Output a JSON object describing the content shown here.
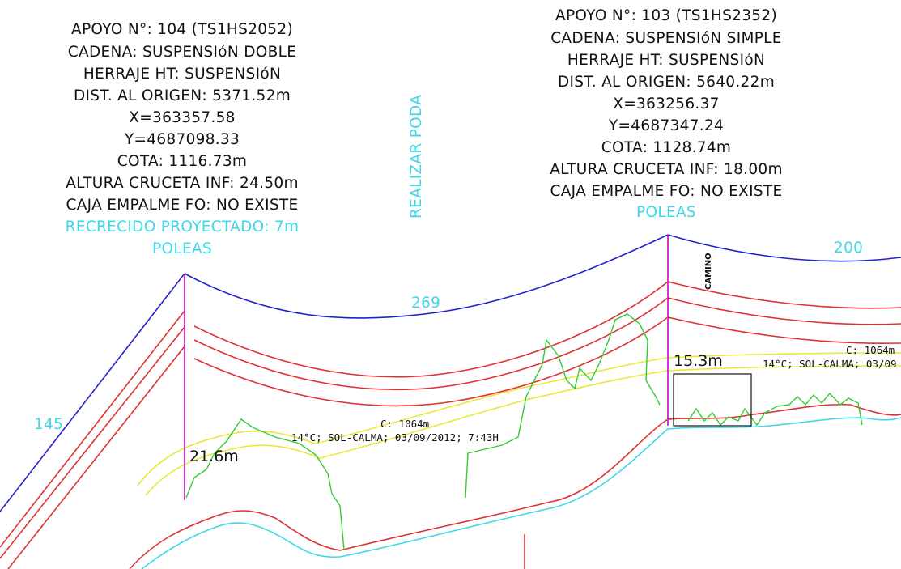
{
  "supports": [
    {
      "lines": [
        "APOYO N°: 104 (TS1HS2052)",
        "CADENA: SUSPENSIóN DOBLE",
        "HERRAJE HT: SUSPENSIóN",
        "DIST. AL ORIGEN: 5371.52m",
        "X=363357.58",
        "Y=4687098.33",
        "COTA: 1116.73m",
        "ALTURA CRUCETA INF: 24.50m",
        "CAJA EMPALME FO: NO EXISTE"
      ],
      "cyan_lines": [
        "RECRECIDO PROYECTADO: 7m",
        "POLEAS"
      ]
    },
    {
      "lines": [
        "APOYO N°: 103 (TS1HS2352)",
        "CADENA: SUSPENSIóN SIMPLE",
        "HERRAJE HT: SUSPENSIóN",
        "DIST. AL ORIGEN: 5640.22m",
        "X=363256.37",
        "Y=4687347.24",
        "COTA: 1128.74m",
        "ALTURA CRUCETA INF: 18.00m",
        "CAJA EMPALME FO: NO EXISTE"
      ],
      "cyan_lines": [
        "POLEAS"
      ]
    }
  ],
  "annotations": {
    "realizar_poda": "REALIZAR PODA",
    "span_left": "145",
    "span_mid": "269",
    "span_right": "200",
    "camino": "CAMINO",
    "clearance_left": "21.6m",
    "clearance_right": "15.3m",
    "cond_mid_1": "C: 1064m",
    "cond_mid_2": "14°C; SOL-CALMA; 03/09/2012; 7:43H",
    "cond_right_1": "C: 1064m",
    "cond_right_2": "14°C; SOL-CALMA; 03/09"
  },
  "colors": {
    "conductor": "#e03131",
    "catenary_upper": "#2222cc",
    "terrain": "#3fd8e8",
    "vegetation": "#33cc33",
    "safety_curve": "#e8e83a",
    "tower": "#cc22cc",
    "cyan_text": "#3fd8e8"
  }
}
